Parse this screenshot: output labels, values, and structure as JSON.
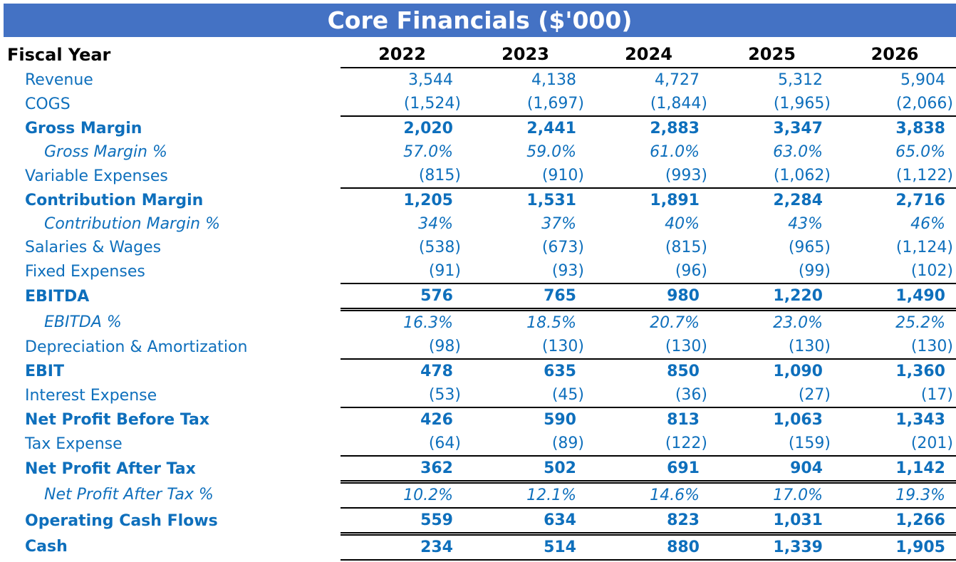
{
  "title": "Core Financials ($'000)",
  "colors": {
    "title_bar_bg": "#4472C4",
    "title_text": "#FFFFFF",
    "header_text": "#000000",
    "data_text": "#0E6FBC",
    "rule_line": "#000000"
  },
  "chart_data": {
    "type": "table",
    "title": "Core Financials ($'000)",
    "row_header_label": "Fiscal Year",
    "years": [
      "2022",
      "2023",
      "2024",
      "2025",
      "2026"
    ],
    "rows": [
      {
        "label": "Revenue",
        "style": "normal",
        "border": "none",
        "values": [
          "3,544",
          "4,138",
          "4,727",
          "5,312",
          "5,904"
        ]
      },
      {
        "label": "COGS",
        "style": "normal",
        "border": "single",
        "values": [
          "(1,524)",
          "(1,697)",
          "(1,844)",
          "(1,965)",
          "(2,066)"
        ]
      },
      {
        "label": "Gross Margin",
        "style": "bold",
        "border": "none",
        "values": [
          "2,020",
          "2,441",
          "2,883",
          "3,347",
          "3,838"
        ]
      },
      {
        "label": "Gross Margin %",
        "style": "pct",
        "border": "none",
        "values": [
          "57.0%",
          "59.0%",
          "61.0%",
          "63.0%",
          "65.0%"
        ]
      },
      {
        "label": "Variable Expenses",
        "style": "normal",
        "border": "single",
        "values": [
          "(815)",
          "(910)",
          "(993)",
          "(1,062)",
          "(1,122)"
        ]
      },
      {
        "label": "Contribution Margin",
        "style": "bold",
        "border": "none",
        "values": [
          "1,205",
          "1,531",
          "1,891",
          "2,284",
          "2,716"
        ]
      },
      {
        "label": "Contribution Margin %",
        "style": "pct",
        "border": "none",
        "values": [
          "34%",
          "37%",
          "40%",
          "43%",
          "46%"
        ]
      },
      {
        "label": "Salaries & Wages",
        "style": "normal",
        "border": "none",
        "values": [
          "(538)",
          "(673)",
          "(815)",
          "(965)",
          "(1,124)"
        ]
      },
      {
        "label": "Fixed Expenses",
        "style": "normal",
        "border": "single",
        "values": [
          "(91)",
          "(93)",
          "(96)",
          "(99)",
          "(102)"
        ]
      },
      {
        "label": "EBITDA",
        "style": "bold",
        "border": "double",
        "values": [
          "576",
          "765",
          "980",
          "1,220",
          "1,490"
        ]
      },
      {
        "label": "EBITDA %",
        "style": "pct",
        "border": "none",
        "values": [
          "16.3%",
          "18.5%",
          "20.7%",
          "23.0%",
          "25.2%"
        ]
      },
      {
        "label": "Depreciation & Amortization",
        "style": "normal",
        "border": "single",
        "values": [
          "(98)",
          "(130)",
          "(130)",
          "(130)",
          "(130)"
        ]
      },
      {
        "label": "EBIT",
        "style": "bold",
        "border": "none",
        "values": [
          "478",
          "635",
          "850",
          "1,090",
          "1,360"
        ]
      },
      {
        "label": "Interest Expense",
        "style": "normal",
        "border": "single",
        "values": [
          "(53)",
          "(45)",
          "(36)",
          "(27)",
          "(17)"
        ]
      },
      {
        "label": "Net Profit Before Tax",
        "style": "bold",
        "border": "none",
        "values": [
          "426",
          "590",
          "813",
          "1,063",
          "1,343"
        ]
      },
      {
        "label": "Tax Expense",
        "style": "normal",
        "border": "single",
        "values": [
          "(64)",
          "(89)",
          "(122)",
          "(159)",
          "(201)"
        ]
      },
      {
        "label": "Net Profit After Tax",
        "style": "bold",
        "border": "double",
        "values": [
          "362",
          "502",
          "691",
          "904",
          "1,142"
        ]
      },
      {
        "label": "Net Profit After Tax %",
        "style": "pct",
        "border": "single",
        "values": [
          "10.2%",
          "12.1%",
          "14.6%",
          "17.0%",
          "19.3%"
        ]
      },
      {
        "label": "Operating Cash Flows",
        "style": "bold",
        "border": "double",
        "values": [
          "559",
          "634",
          "823",
          "1,031",
          "1,266"
        ]
      },
      {
        "label": "Cash",
        "style": "bold",
        "border": "single",
        "values": [
          "234",
          "514",
          "880",
          "1,339",
          "1,905"
        ]
      }
    ]
  }
}
